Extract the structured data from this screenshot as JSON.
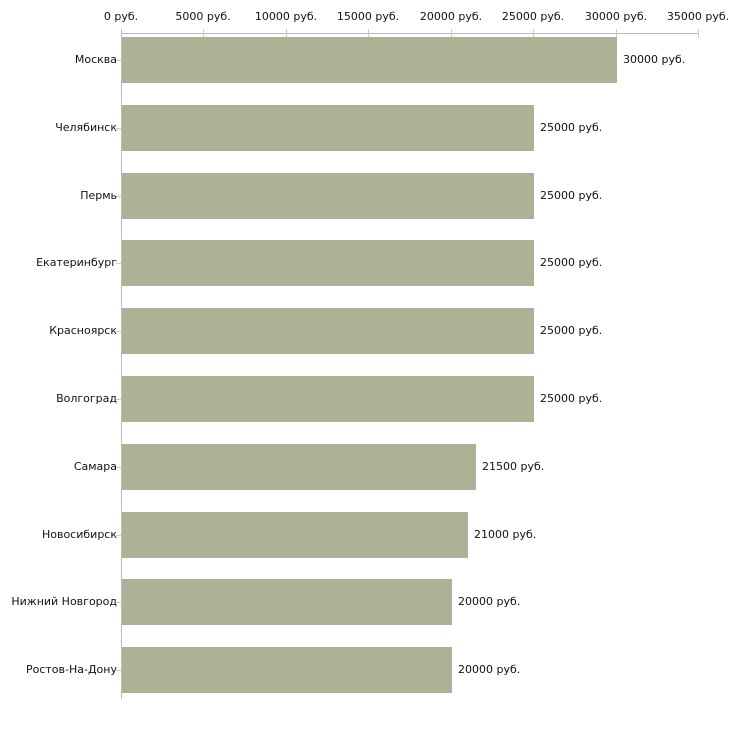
{
  "chart_data": {
    "type": "bar",
    "orientation": "horizontal",
    "title": "",
    "xlabel": "",
    "ylabel": "",
    "unit": "руб.",
    "categories": [
      "Москва",
      "Челябинск",
      "Пермь",
      "Екатеринбург",
      "Красноярск",
      "Волгоград",
      "Самара",
      "Новосибирск",
      "Нижний Новгород",
      "Ростов-На-Дону"
    ],
    "values": [
      30000,
      25000,
      25000,
      25000,
      25000,
      25000,
      21500,
      21000,
      20000,
      20000
    ],
    "bar_value_labels": [
      "30000 руб.",
      "25000 руб.",
      "25000 руб.",
      "25000 руб.",
      "25000 руб.",
      "25000 руб.",
      "21500 руб.",
      "21000 руб.",
      "20000 руб.",
      "20000 руб."
    ],
    "x_ticks": [
      0,
      5000,
      10000,
      15000,
      20000,
      25000,
      30000,
      35000
    ],
    "x_tick_labels": [
      "0 руб.",
      "5000 руб.",
      "10000 руб.",
      "15000 руб.",
      "20000 руб.",
      "25000 руб.",
      "30000 руб.",
      "35000 руб."
    ],
    "xlim": [
      0,
      35000
    ],
    "grid": false,
    "legend": false,
    "colors": {
      "bar": "#acb295",
      "axis_line": "#b8b8b8",
      "tick": "#cdd0ab",
      "text": "#111111",
      "background": "#ffffff"
    }
  }
}
